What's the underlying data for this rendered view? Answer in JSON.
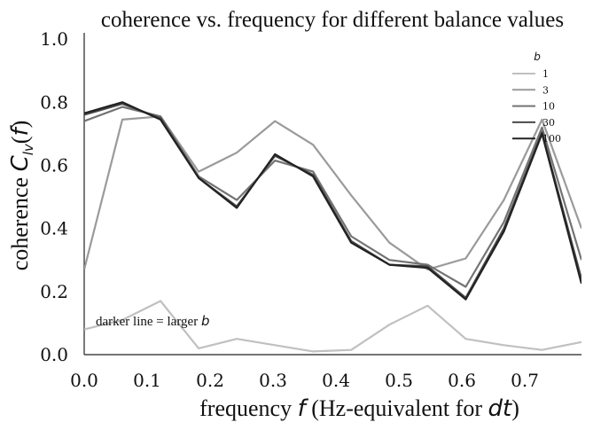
{
  "chart_data": {
    "type": "line",
    "title": "coherence vs. frequency for different balance values",
    "xlabel": "frequency f (Hz-equivalent for dt)",
    "ylabel": "coherence C_lv(f)",
    "xlim": [
      0.0,
      0.79
    ],
    "ylim": [
      0.0,
      1.02
    ],
    "xticks": [
      "0.0",
      "0.1",
      "0.2",
      "0.3",
      "0.4",
      "0.5",
      "0.6",
      "0.7"
    ],
    "yticks": [
      "0.0",
      "0.2",
      "0.4",
      "0.6",
      "0.8",
      "1.0"
    ],
    "grid": false,
    "legend": {
      "title": "b",
      "position": "top-right"
    },
    "annotation": "darker line = larger b",
    "x": [
      0.0,
      0.0606,
      0.1212,
      0.1818,
      0.2424,
      0.303,
      0.3636,
      0.4242,
      0.4848,
      0.5455,
      0.6061,
      0.6667,
      0.7273,
      0.79
    ],
    "series": [
      {
        "name": "1",
        "color": "#c0c0c0",
        "values": [
          0.08,
          0.11,
          0.17,
          0.02,
          0.05,
          0.03,
          0.01,
          0.015,
          0.095,
          0.155,
          0.05,
          0.03,
          0.015,
          0.04
        ]
      },
      {
        "name": "3",
        "color": "#9a9a9a",
        "values": [
          0.27,
          0.745,
          0.755,
          0.58,
          0.64,
          0.74,
          0.665,
          0.505,
          0.355,
          0.27,
          0.305,
          0.49,
          0.745,
          0.4
        ]
      },
      {
        "name": "10",
        "color": "#737373",
        "values": [
          0.74,
          0.785,
          0.755,
          0.565,
          0.49,
          0.615,
          0.58,
          0.375,
          0.3,
          0.285,
          0.215,
          0.42,
          0.72,
          0.3
        ]
      },
      {
        "name": "30",
        "color": "#4a4a4a",
        "values": [
          0.76,
          0.795,
          0.75,
          0.56,
          0.47,
          0.63,
          0.57,
          0.36,
          0.285,
          0.28,
          0.18,
          0.4,
          0.705,
          0.24
        ]
      },
      {
        "name": "100",
        "color": "#222222",
        "values": [
          0.765,
          0.8,
          0.745,
          0.56,
          0.465,
          0.635,
          0.565,
          0.355,
          0.285,
          0.275,
          0.175,
          0.39,
          0.7,
          0.225
        ]
      }
    ]
  }
}
